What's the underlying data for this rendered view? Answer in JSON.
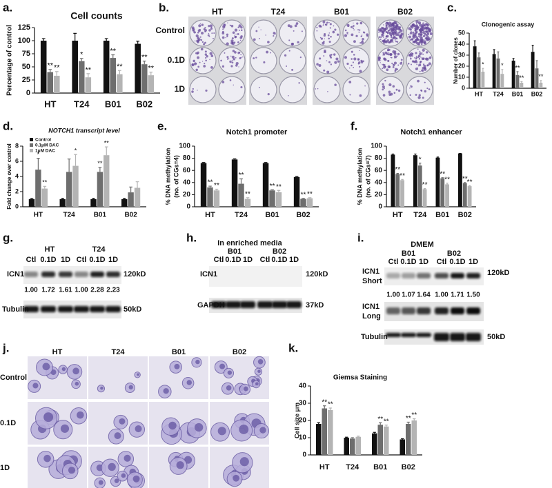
{
  "panel_labels": {
    "a": "a.",
    "b": "b.",
    "c": "c.",
    "d": "d.",
    "e": "e.",
    "f": "f.",
    "g": "g.",
    "h": "h.",
    "i": "i.",
    "j": "j.",
    "k": "k."
  },
  "chart_data": [
    {
      "type": "bar",
      "title": "Cell counts",
      "ylabel": [
        "Percentage of control"
      ],
      "categories": [
        "HT",
        "T24",
        "B01",
        "B02"
      ],
      "ylim": [
        0,
        125
      ],
      "yticks": [
        0,
        25,
        50,
        75,
        100,
        125
      ],
      "series": [
        {
          "color": "#111111",
          "values": [
            100,
            100,
            100,
            94
          ],
          "errors": [
            4,
            14,
            4,
            5
          ],
          "annotations": [
            null,
            null,
            null,
            null
          ]
        },
        {
          "color": "#6e6e6e",
          "values": [
            40,
            61,
            67,
            55
          ],
          "errors": [
            5,
            5,
            6,
            6
          ],
          "annotations": [
            "**",
            "*",
            "**",
            "**"
          ]
        },
        {
          "color": "#b4b4b4",
          "values": [
            33,
            30,
            36,
            34
          ],
          "errors": [
            8,
            7,
            7,
            6
          ],
          "annotations": [
            "**",
            "**",
            "**",
            "**"
          ]
        }
      ]
    },
    {
      "type": "bar",
      "title": "Clonogenic assay",
      "ylabel": [
        "Number of clones"
      ],
      "categories": [
        "HT",
        "T24",
        "B01",
        "B02"
      ],
      "ylim": [
        0,
        50
      ],
      "yticks": [
        0,
        10,
        20,
        30,
        40,
        50
      ],
      "series": [
        {
          "color": "#111111",
          "values": [
            38,
            31,
            25,
            33
          ],
          "errors": [
            5,
            4,
            2,
            6
          ],
          "annotations": [
            null,
            null,
            null,
            null
          ]
        },
        {
          "color": "#6e6e6e",
          "values": [
            28,
            27,
            12,
            18
          ],
          "errors": [
            4,
            6,
            3,
            7
          ],
          "annotations": [
            null,
            null,
            "**",
            null
          ]
        },
        {
          "color": "#b4b4b4",
          "values": [
            15,
            13,
            5,
            5
          ],
          "errors": [
            3,
            4,
            1,
            2
          ],
          "annotations": [
            "*",
            "*",
            "**",
            "**"
          ]
        }
      ]
    },
    {
      "type": "bar",
      "title": "NOTCH1 transcript level",
      "ylabel": [
        "Fold change over control"
      ],
      "categories": [
        "HT",
        "T24",
        "B01",
        "B02"
      ],
      "ylim": [
        0,
        8
      ],
      "yticks": [
        0,
        2,
        4,
        6,
        8
      ],
      "legend": "upper left",
      "series": [
        {
          "name": "Control",
          "color": "#111111",
          "values": [
            1,
            1,
            1,
            1
          ],
          "errors": [
            0.1,
            0.1,
            0.1,
            0.1
          ],
          "annotations": [
            null,
            null,
            null,
            null
          ]
        },
        {
          "name": "0.1μM DAC",
          "color": "#6e6e6e",
          "values": [
            4.9,
            4.6,
            4.6,
            1.9
          ],
          "errors": [
            1.5,
            1.7,
            0.6,
            0.7
          ],
          "annotations": [
            "*",
            null,
            "**",
            null
          ]
        },
        {
          "name": "1μM DAC",
          "color": "#b4b4b4",
          "values": [
            2.4,
            5.4,
            6.8,
            2.5
          ],
          "errors": [
            0.3,
            1.5,
            1.1,
            0.8
          ],
          "annotations": [
            "**",
            "*",
            "**",
            null
          ]
        }
      ]
    },
    {
      "type": "bar",
      "title": "Notch1 promoter",
      "ylabel": [
        "% DNA methylation",
        "(no. of CGs=4)"
      ],
      "categories": [
        "HT",
        "T24",
        "B01",
        "B02"
      ],
      "ylim": [
        0,
        100
      ],
      "yticks": [
        0,
        20,
        40,
        60,
        80,
        100
      ],
      "series": [
        {
          "color": "#111111",
          "values": [
            72,
            78,
            72,
            49
          ],
          "errors": [
            1,
            1,
            1,
            1
          ],
          "annotations": [
            null,
            null,
            null,
            null
          ]
        },
        {
          "color": "#6e6e6e",
          "values": [
            32,
            38,
            27,
            13
          ],
          "errors": [
            2,
            8,
            1,
            1
          ],
          "annotations": [
            "**",
            "**",
            "**",
            "**"
          ]
        },
        {
          "color": "#b4b4b4",
          "values": [
            27,
            13,
            24,
            14
          ],
          "errors": [
            2,
            2,
            3,
            1
          ],
          "annotations": [
            "**",
            "**",
            "**",
            "**"
          ]
        }
      ]
    },
    {
      "type": "bar",
      "title": "Notch1 enhancer",
      "ylabel": [
        "% DNA methylation",
        "(no. of CGs=7)"
      ],
      "categories": [
        "HT",
        "T24",
        "B01",
        "B02"
      ],
      "ylim": [
        0,
        100
      ],
      "yticks": [
        0,
        20,
        40,
        60,
        80,
        100
      ],
      "series": [
        {
          "color": "#111111",
          "values": [
            86,
            85,
            81,
            88
          ],
          "errors": [
            1,
            2,
            1,
            0
          ],
          "annotations": [
            null,
            null,
            null,
            null
          ]
        },
        {
          "color": "#6e6e6e",
          "values": [
            54,
            68,
            47,
            39
          ],
          "errors": [
            1,
            4,
            1,
            1
          ],
          "annotations": [
            "**",
            "*",
            "**",
            "**"
          ]
        },
        {
          "color": "#b4b4b4",
          "values": [
            44,
            29,
            37,
            34
          ],
          "errors": [
            1,
            1,
            2,
            1
          ],
          "annotations": [
            "**",
            "**",
            "**",
            "**"
          ]
        }
      ]
    },
    {
      "type": "bar",
      "title": "Giemsa Staining",
      "ylabel": [
        "Cell size μm"
      ],
      "categories": [
        "HT",
        "T24",
        "B01",
        "B02"
      ],
      "ylim": [
        0,
        40
      ],
      "yticks": [
        0,
        10,
        20,
        30,
        40
      ],
      "series": [
        {
          "color": "#111111",
          "values": [
            18,
            10,
            12.5,
            9
          ],
          "errors": [
            0.7,
            0.3,
            0.6,
            0.4
          ],
          "annotations": [
            null,
            null,
            null,
            null
          ]
        },
        {
          "color": "#6e6e6e",
          "values": [
            27,
            9.5,
            17.5,
            18
          ],
          "errors": [
            1.5,
            0.5,
            1.2,
            1
          ],
          "annotations": [
            "**",
            null,
            "**",
            "**"
          ]
        },
        {
          "color": "#b4b4b4",
          "values": [
            26,
            10.5,
            16.5,
            20
          ],
          "errors": [
            1.2,
            0.4,
            0.8,
            1
          ],
          "annotations": [
            "**",
            null,
            "**",
            "**"
          ]
        }
      ]
    }
  ],
  "colony": {
    "columns": [
      "HT",
      "T24",
      "B01",
      "B02"
    ],
    "rows": [
      "Control",
      "0.1D",
      "1D"
    ]
  },
  "blot_g": {
    "groups": [
      "HT",
      "T24"
    ],
    "lanes": [
      "Ctl",
      "0.1D",
      "1D",
      "Ctl",
      "0.1D",
      "1D"
    ],
    "rows": [
      "ICN1",
      "Tubulin"
    ],
    "sizes": [
      "120kD",
      "50kD"
    ],
    "ratios": [
      "1.00",
      "1.72",
      "1.61",
      "1.00",
      "2.28",
      "2.23"
    ]
  },
  "blot_h": {
    "title": "In enriched media",
    "groups": [
      "B01",
      "B02"
    ],
    "lanes": [
      "Ctl",
      "0.1D",
      "1D",
      "Ctl",
      "0.1D",
      "1D"
    ],
    "rows": [
      "ICN1",
      "GAPDH"
    ],
    "sizes": [
      "120kD",
      "37kD"
    ]
  },
  "blot_i": {
    "title": "DMEM",
    "groups": [
      "B01",
      "B02"
    ],
    "lanes": [
      "Ctl",
      "0.1D",
      "1D",
      "Ctl",
      "0.1D",
      "1D"
    ],
    "rows": [
      [
        "ICN1",
        "Short"
      ],
      [
        "ICN1",
        "Long"
      ],
      [
        "Tubulin"
      ]
    ],
    "sizes": [
      "120kD",
      "50kD"
    ],
    "ratios": [
      "1.00",
      "1.07",
      "1.64",
      "1.00",
      "1.71",
      "1.50"
    ]
  },
  "micrographs": {
    "columns": [
      "HT",
      "T24",
      "B01",
      "B02"
    ],
    "rows": [
      "Control",
      "0.1D",
      "1D"
    ]
  }
}
